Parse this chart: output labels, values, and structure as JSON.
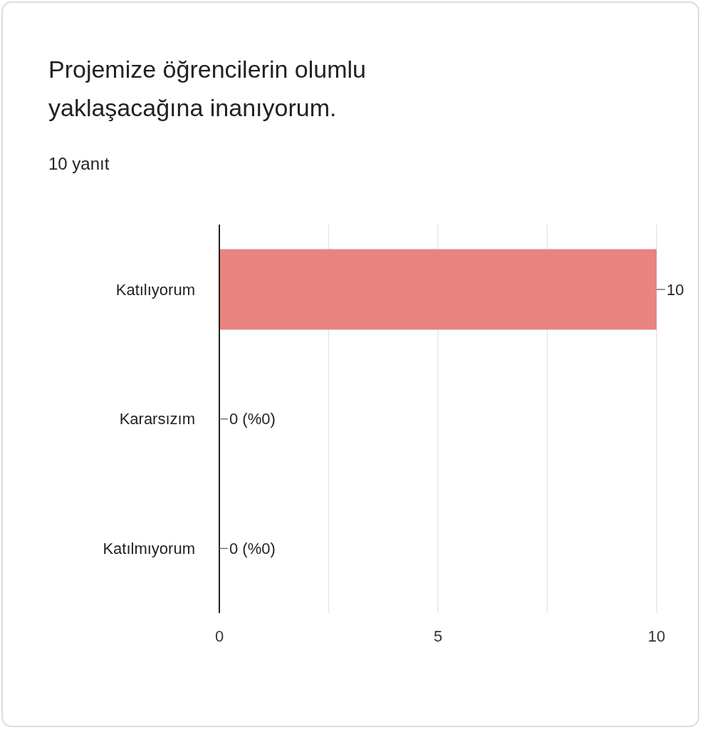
{
  "chart_data": {
    "type": "bar",
    "orientation": "horizontal",
    "title": "Projemize öğrencilerin olumlu yaklaşacağına inanıyorum.",
    "subtitle": "10 yanıt",
    "categories": [
      "Katılıyorum",
      "Kararsızım",
      "Katılmıyorum"
    ],
    "values": [
      10,
      0,
      0
    ],
    "value_labels": [
      "10",
      "0 (%0)",
      "0 (%0)"
    ],
    "color": "#e88480",
    "xlim": [
      0,
      10
    ],
    "xticks": [
      0,
      {
        "value": 2.5,
        "label": null
      },
      5,
      {
        "value": 7.5,
        "label": null
      },
      10
    ],
    "grid": "x"
  }
}
